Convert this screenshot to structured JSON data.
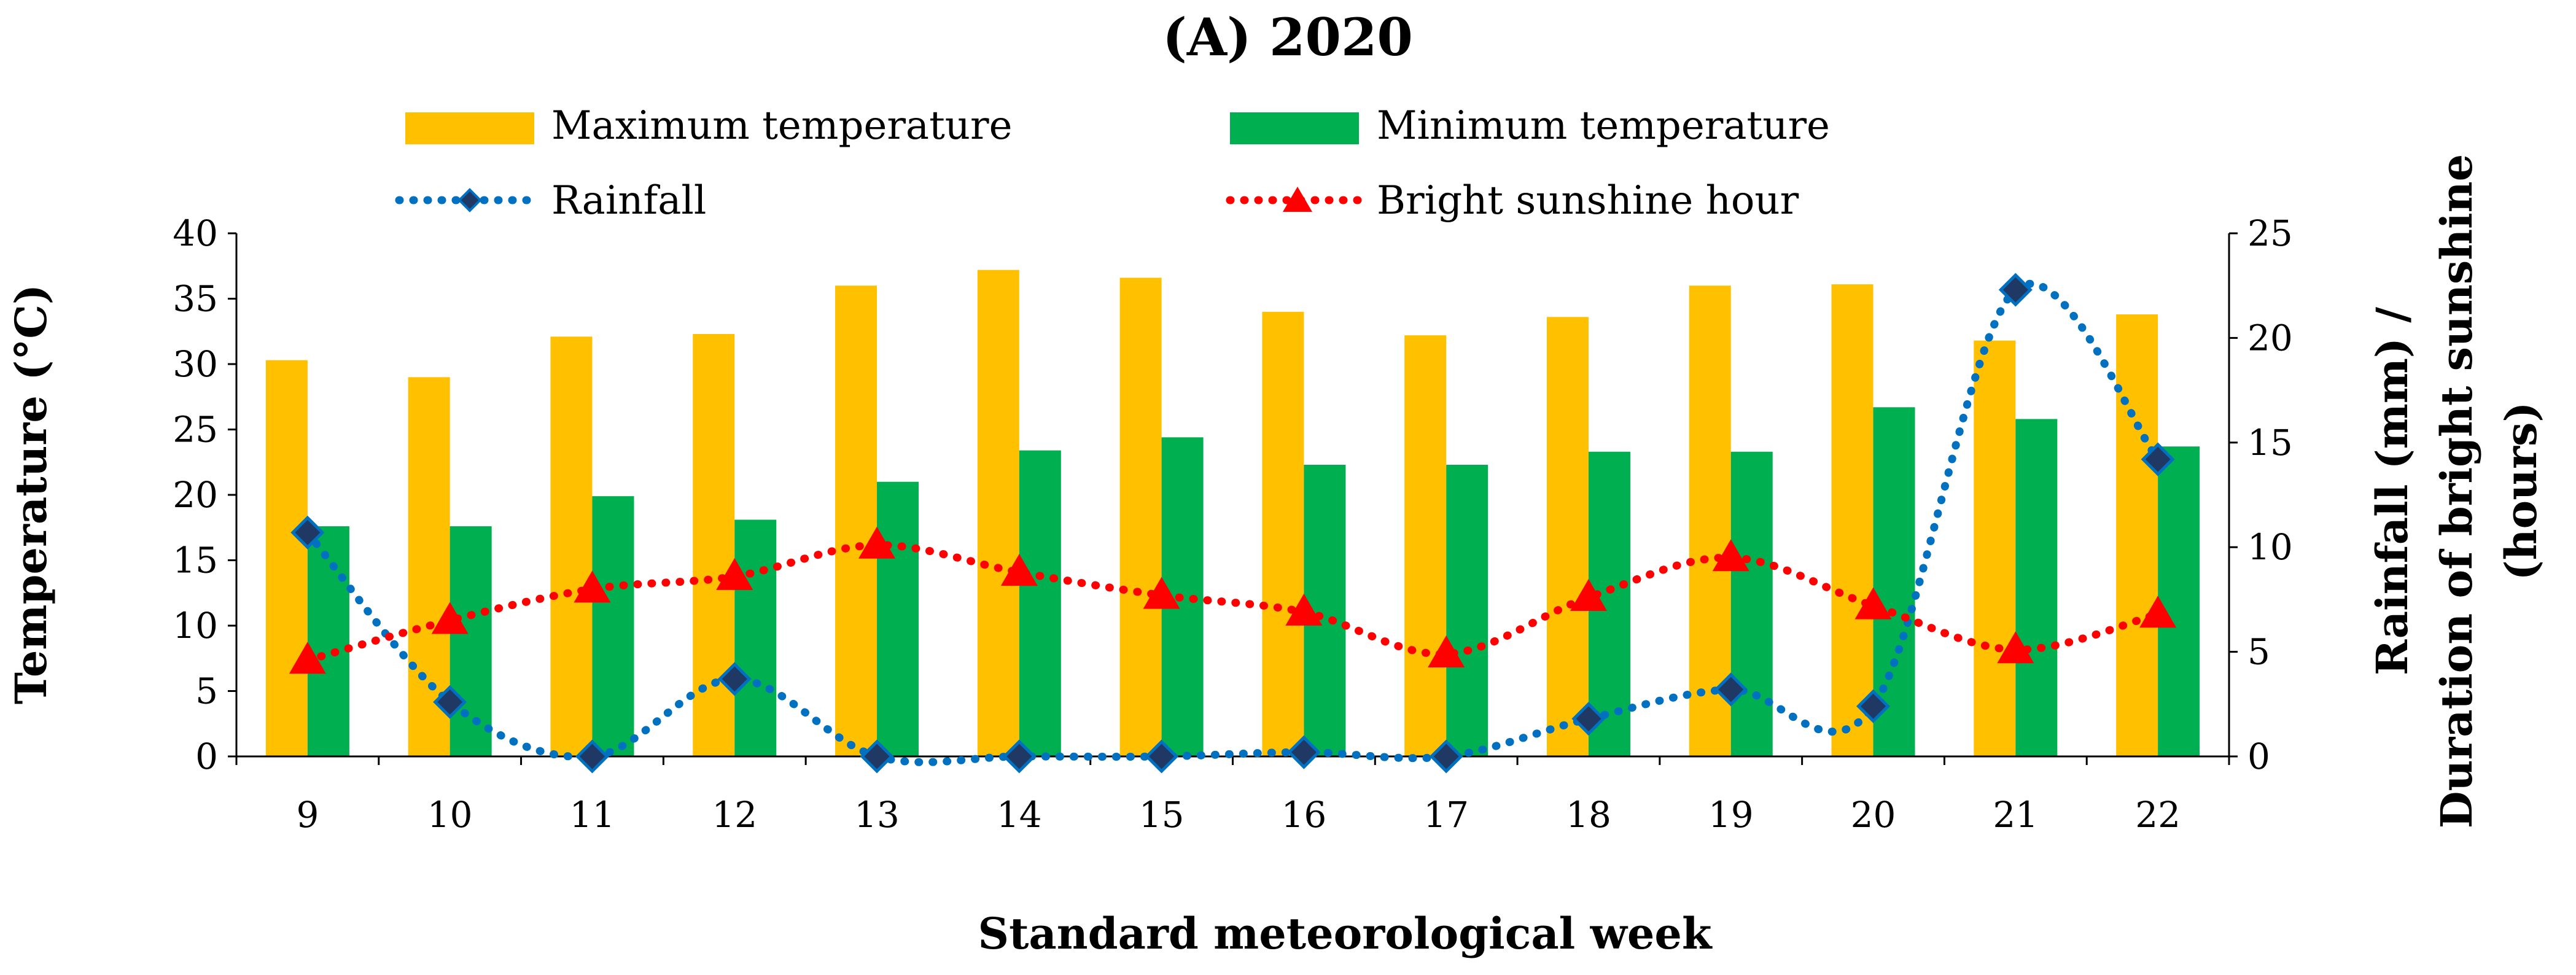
{
  "chart_data": {
    "type": "bar",
    "title": "(A) 2020",
    "xlabel": "Standard meteorological week",
    "ylabel": "Temperature (°C)",
    "y2label": [
      "Rainfall (mm) /",
      "Duration of bright sunshine",
      "(hours)"
    ],
    "categories": [
      "9",
      "10",
      "11",
      "12",
      "13",
      "14",
      "15",
      "16",
      "17",
      "18",
      "19",
      "20",
      "21",
      "22"
    ],
    "ylim": [
      0,
      40
    ],
    "y_ticks": [
      "0",
      "5",
      "10",
      "15",
      "20",
      "25",
      "30",
      "35",
      "40"
    ],
    "y2lim": [
      0,
      25
    ],
    "y2_ticks": [
      "0",
      "5",
      "10",
      "15",
      "20",
      "25"
    ],
    "series": [
      {
        "name": "Maximum temperature",
        "kind": "bar",
        "axis": "left",
        "color": "#FFC000",
        "values": [
          30.3,
          29.0,
          32.1,
          32.3,
          36.0,
          37.2,
          36.6,
          34.0,
          32.2,
          33.6,
          36.0,
          36.1,
          31.8,
          33.8
        ]
      },
      {
        "name": "Minimum temperature",
        "kind": "bar",
        "axis": "left",
        "color": "#00B050",
        "values": [
          17.6,
          17.6,
          19.9,
          18.1,
          21.0,
          23.4,
          24.4,
          22.3,
          22.3,
          23.3,
          23.3,
          26.7,
          25.8,
          23.7
        ]
      },
      {
        "name": "Rainfall",
        "kind": "line",
        "axis": "right",
        "color": "#0070C0",
        "marker": "diamond",
        "marker_fill": "#1F3864",
        "values": [
          10.7,
          2.6,
          0.0,
          3.7,
          0.0,
          0.0,
          0.0,
          0.2,
          0.0,
          1.8,
          3.2,
          2.4,
          22.3,
          14.2
        ]
      },
      {
        "name": "Bright sunshine hour",
        "kind": "line",
        "axis": "right",
        "color": "#FF0000",
        "marker": "triangle",
        "marker_fill": "#FF0000",
        "values": [
          4.6,
          6.5,
          8.0,
          8.6,
          10.1,
          8.8,
          7.7,
          6.9,
          4.9,
          7.6,
          9.5,
          7.2,
          5.1,
          6.8
        ]
      }
    ],
    "legend_position": "top"
  }
}
